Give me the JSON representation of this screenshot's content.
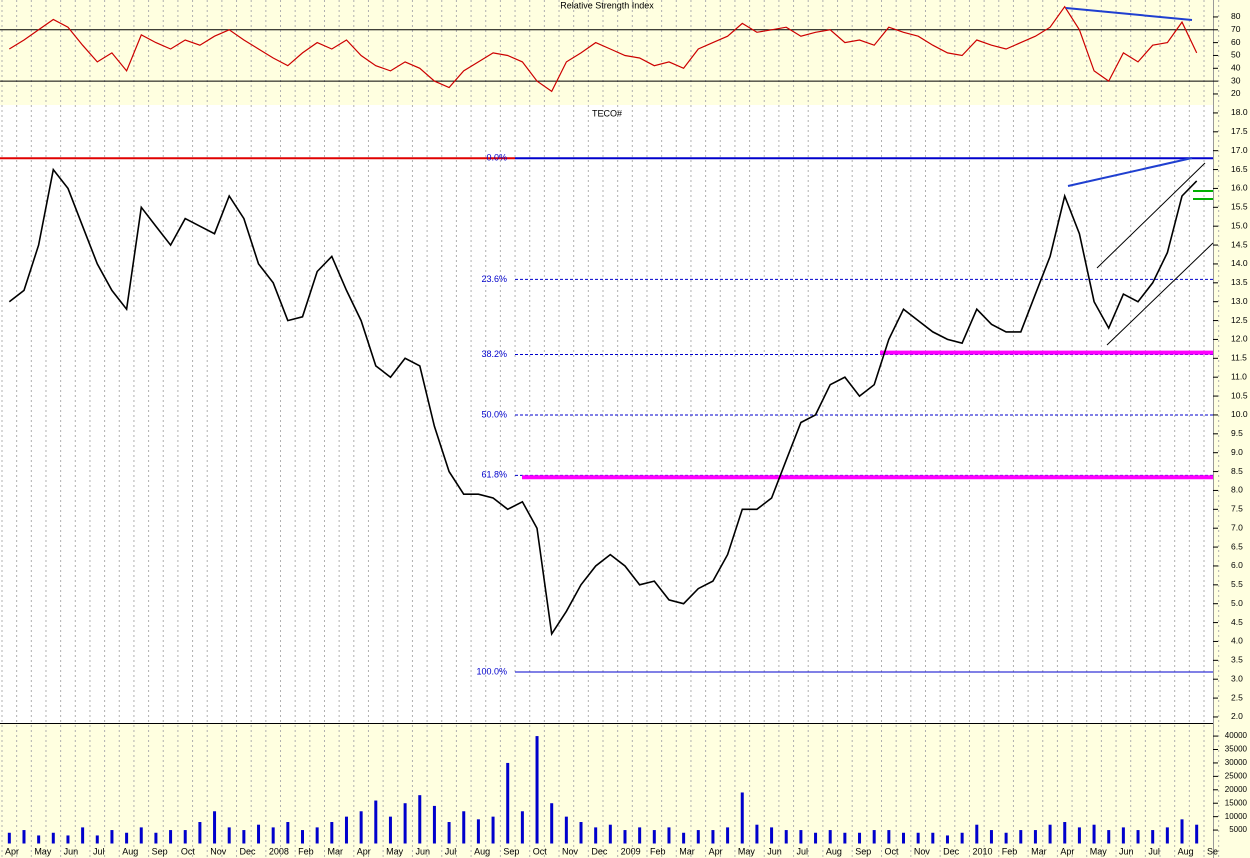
{
  "chart_data": [
    {
      "type": "line",
      "title": "Relative Strength Index",
      "color": "#cc0000",
      "values": [
        55,
        62,
        70,
        78,
        72,
        58,
        45,
        52,
        38,
        66,
        60,
        55,
        62,
        58,
        65,
        70,
        62,
        55,
        48,
        42,
        52,
        60,
        55,
        62,
        50,
        42,
        38,
        45,
        40,
        30,
        25,
        38,
        45,
        52,
        50,
        45,
        30,
        22,
        45,
        52,
        60,
        55,
        50,
        48,
        42,
        45,
        40,
        55,
        60,
        65,
        75,
        68,
        70,
        72,
        65,
        68,
        70,
        60,
        62,
        58,
        72,
        68,
        65,
        58,
        52,
        50,
        62,
        58,
        55,
        60,
        65,
        72,
        88,
        70,
        38,
        30,
        52,
        45,
        58,
        60,
        76,
        52,
        null,
        null
      ],
      "ylim": [
        11.4,
        93.2
      ],
      "yticks": [
        20,
        30,
        40,
        50,
        60,
        70,
        80
      ],
      "levels": [
        30,
        70
      ]
    },
    {
      "type": "line",
      "title": "TECO#",
      "color": "#000000",
      "values": [
        13.0,
        13.3,
        14.5,
        16.5,
        16.0,
        15.0,
        14.0,
        13.3,
        12.8,
        15.5,
        15.0,
        14.5,
        15.2,
        15.0,
        14.8,
        15.8,
        15.2,
        14.0,
        13.5,
        12.5,
        12.6,
        13.8,
        14.2,
        13.3,
        12.5,
        11.3,
        11.0,
        11.5,
        11.3,
        9.7,
        8.5,
        7.9,
        7.9,
        7.8,
        7.5,
        7.7,
        7.0,
        4.2,
        4.8,
        5.5,
        6.0,
        6.3,
        6.0,
        5.5,
        5.6,
        5.1,
        5.0,
        5.4,
        5.6,
        6.3,
        7.5,
        7.5,
        7.8,
        8.8,
        9.8,
        10.0,
        10.8,
        11.0,
        10.5,
        10.8,
        12.0,
        12.8,
        12.5,
        12.2,
        12.0,
        11.9,
        12.8,
        12.4,
        12.2,
        12.2,
        13.2,
        14.2,
        15.8,
        14.8,
        13.0,
        12.3,
        13.2,
        13.0,
        13.5,
        14.3,
        15.8,
        16.2,
        null,
        null
      ],
      "ylim": [
        1.84,
        18.21
      ],
      "yticks": [
        {
          "value": 2,
          "label": "2.0"
        },
        {
          "value": 2.5,
          "label": "2.5"
        },
        {
          "value": 3,
          "label": "3.0"
        },
        {
          "value": 3.5,
          "label": "3.5"
        },
        {
          "value": 4,
          "label": "4.0"
        },
        {
          "value": 4.5,
          "label": "4.5"
        },
        {
          "value": 5,
          "label": "5.0"
        },
        {
          "value": 5.5,
          "label": "5.5"
        },
        {
          "value": 6,
          "label": "6.0"
        },
        {
          "value": 6.5,
          "label": "6.5"
        },
        {
          "value": 7,
          "label": "7.0"
        },
        {
          "value": 7.5,
          "label": "7.5"
        },
        {
          "value": 8,
          "label": "8.0"
        },
        {
          "value": 8.5,
          "label": "8.5"
        },
        {
          "value": 9,
          "label": "9.0"
        },
        {
          "value": 9.5,
          "label": "9.5"
        },
        {
          "value": 10,
          "label": "10.0"
        },
        {
          "value": 10.5,
          "label": "10.5"
        },
        {
          "value": 11,
          "label": "11.0"
        },
        {
          "value": 11.5,
          "label": "11.5"
        },
        {
          "value": 12,
          "label": "12.0"
        },
        {
          "value": 12.5,
          "label": "12.5"
        },
        {
          "value": 13,
          "label": "13.0"
        },
        {
          "value": 13.5,
          "label": "13.5"
        },
        {
          "value": 14,
          "label": "14.0"
        },
        {
          "value": 14.5,
          "label": "14.5"
        },
        {
          "value": 15,
          "label": "15.0"
        },
        {
          "value": 15.5,
          "label": "15.5"
        },
        {
          "value": 16,
          "label": "16.0"
        },
        {
          "value": 16.5,
          "label": "16.5"
        },
        {
          "value": 17,
          "label": "17.0"
        },
        {
          "value": 17.5,
          "label": "17.5"
        },
        {
          "value": 18,
          "label": "18.0"
        }
      ],
      "resistance": {
        "value": 16.8,
        "color": "#e00000"
      },
      "supports": [
        {
          "value": 11.65,
          "color": "#ff00ff"
        },
        {
          "value": 8.35,
          "color": "#ff00ff"
        }
      ],
      "fib_color": "#0000cc",
      "fib_levels": [
        {
          "label": "0.0%",
          "value": 16.8
        },
        {
          "label": "23.6%",
          "value": 13.59
        },
        {
          "label": "38.2%",
          "value": 11.6
        },
        {
          "label": "50.0%",
          "value": 10.0
        },
        {
          "label": "61.8%",
          "value": 8.4
        },
        {
          "label": "100.0%",
          "value": 3.19
        }
      ]
    },
    {
      "type": "bar",
      "color": "#0000cc",
      "categories": [
        "Apr",
        null,
        "May",
        null,
        "Jun",
        null,
        "Jul",
        null,
        "Aug",
        null,
        "Sep",
        null,
        "Oct",
        null,
        "Nov",
        null,
        "Dec",
        null,
        "2008",
        null,
        "Feb",
        null,
        "Mar",
        null,
        "Apr",
        null,
        "May",
        null,
        "Jun",
        null,
        "Jul",
        null,
        "Aug",
        null,
        "Sep",
        null,
        "Oct",
        null,
        "Nov",
        null,
        "Dec",
        null,
        "2009",
        null,
        "Feb",
        null,
        "Mar",
        null,
        "Apr",
        null,
        "May",
        null,
        "Jun",
        null,
        "Jul",
        null,
        "Aug",
        null,
        "Sep",
        null,
        "Oct",
        null,
        "Nov",
        null,
        "Dec",
        null,
        "2010",
        null,
        "Feb",
        null,
        "Mar",
        null,
        "Apr",
        null,
        "May",
        null,
        "Jun",
        null,
        "Jul",
        null,
        "Aug",
        null,
        "Se",
        null
      ],
      "values": [
        4000,
        5000,
        3000,
        4000,
        3000,
        6000,
        3000,
        5000,
        4000,
        6000,
        4000,
        5000,
        5000,
        8000,
        12000,
        6000,
        5000,
        7000,
        6000,
        8000,
        5000,
        6000,
        8000,
        10000,
        12000,
        16000,
        10000,
        15000,
        18000,
        14000,
        8000,
        12000,
        9000,
        10000,
        30000,
        12000,
        40000,
        15000,
        10000,
        8000,
        6000,
        7000,
        5000,
        6000,
        5000,
        6000,
        4000,
        5000,
        5000,
        6000,
        19000,
        7000,
        6000,
        5000,
        5000,
        4000,
        5000,
        4000,
        4000,
        5000,
        5000,
        4000,
        4000,
        4000,
        3000,
        4000,
        7000,
        5000,
        4000,
        5000,
        5000,
        7000,
        8000,
        6000,
        7000,
        5000,
        6000,
        5000,
        5000,
        6000,
        9000,
        7000,
        null,
        null
      ],
      "ylim": [
        -5400,
        44500
      ],
      "yticks": [
        5000,
        10000,
        15000,
        20000,
        25000,
        30000,
        35000,
        40000
      ]
    }
  ]
}
